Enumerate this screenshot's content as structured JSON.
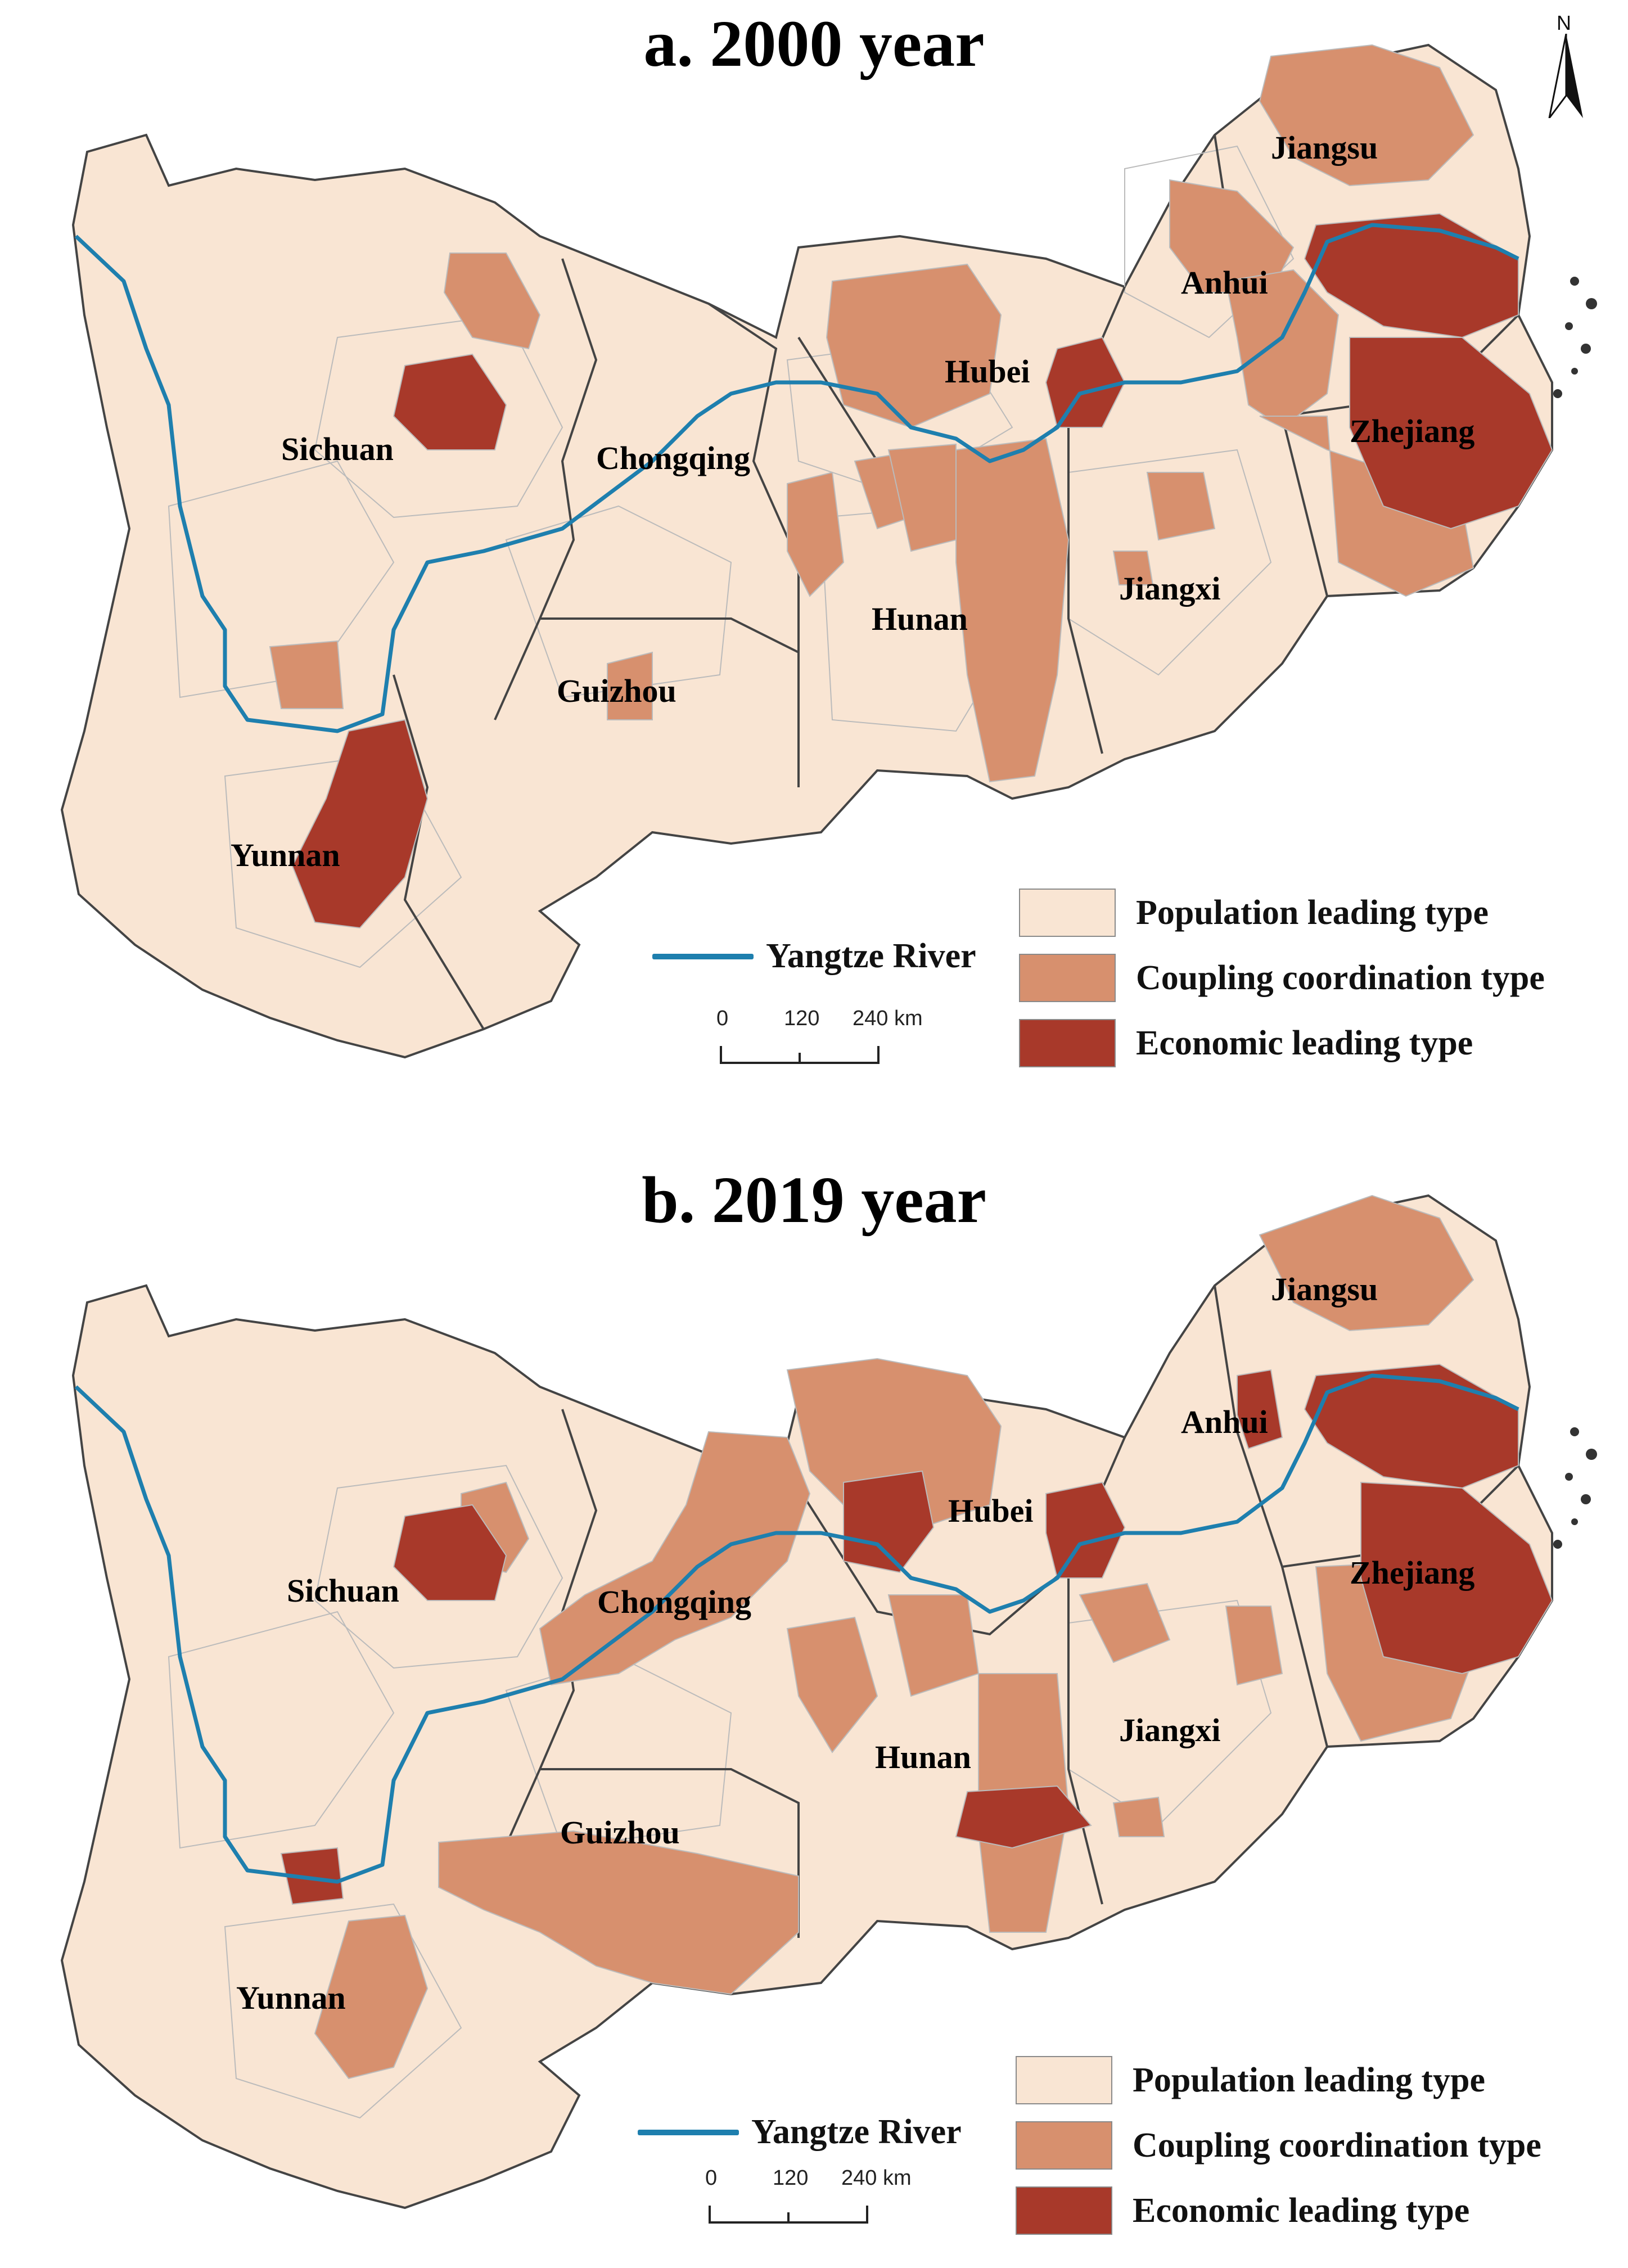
{
  "colors": {
    "population": "#f9e5d3",
    "coupling": "#d7906e",
    "economic": "#a8392a",
    "river": "#1e7fae",
    "border": "#444444",
    "inner_border": "#bbbbbb"
  },
  "icons": {
    "north": "north-arrow-icon"
  },
  "north_label": "N",
  "panels": [
    {
      "title": "a. 2000 year",
      "provinces": [
        {
          "name": "Jiangsu"
        },
        {
          "name": "Anhui"
        },
        {
          "name": "Hubei"
        },
        {
          "name": "Zhejiang"
        },
        {
          "name": "Sichuan"
        },
        {
          "name": "Chongqing"
        },
        {
          "name": "Jiangxi"
        },
        {
          "name": "Hunan"
        },
        {
          "name": "Guizhou"
        },
        {
          "name": "Yunnan"
        }
      ],
      "legend": {
        "river": "Yangtze River",
        "items": [
          {
            "label": "Population leading type",
            "class": "population"
          },
          {
            "label": "Coupling coordination type",
            "class": "coupling"
          },
          {
            "label": "Economic leading type",
            "class": "economic"
          }
        ]
      },
      "scale": {
        "ticks": [
          "0",
          "120",
          "240 km"
        ]
      }
    },
    {
      "title": "b. 2019 year",
      "provinces": [
        {
          "name": "Jiangsu"
        },
        {
          "name": "Anhui"
        },
        {
          "name": "Hubei"
        },
        {
          "name": "Zhejiang"
        },
        {
          "name": "Sichuan"
        },
        {
          "name": "Chongqing"
        },
        {
          "name": "Jiangxi"
        },
        {
          "name": "Hunan"
        },
        {
          "name": "Guizhou"
        },
        {
          "name": "Yunnan"
        }
      ],
      "legend": {
        "river": "Yangtze River",
        "items": [
          {
            "label": "Population leading type",
            "class": "population"
          },
          {
            "label": "Coupling coordination type",
            "class": "coupling"
          },
          {
            "label": "Economic leading type",
            "class": "economic"
          }
        ]
      },
      "scale": {
        "ticks": [
          "0",
          "120",
          "240 km"
        ]
      }
    }
  ]
}
